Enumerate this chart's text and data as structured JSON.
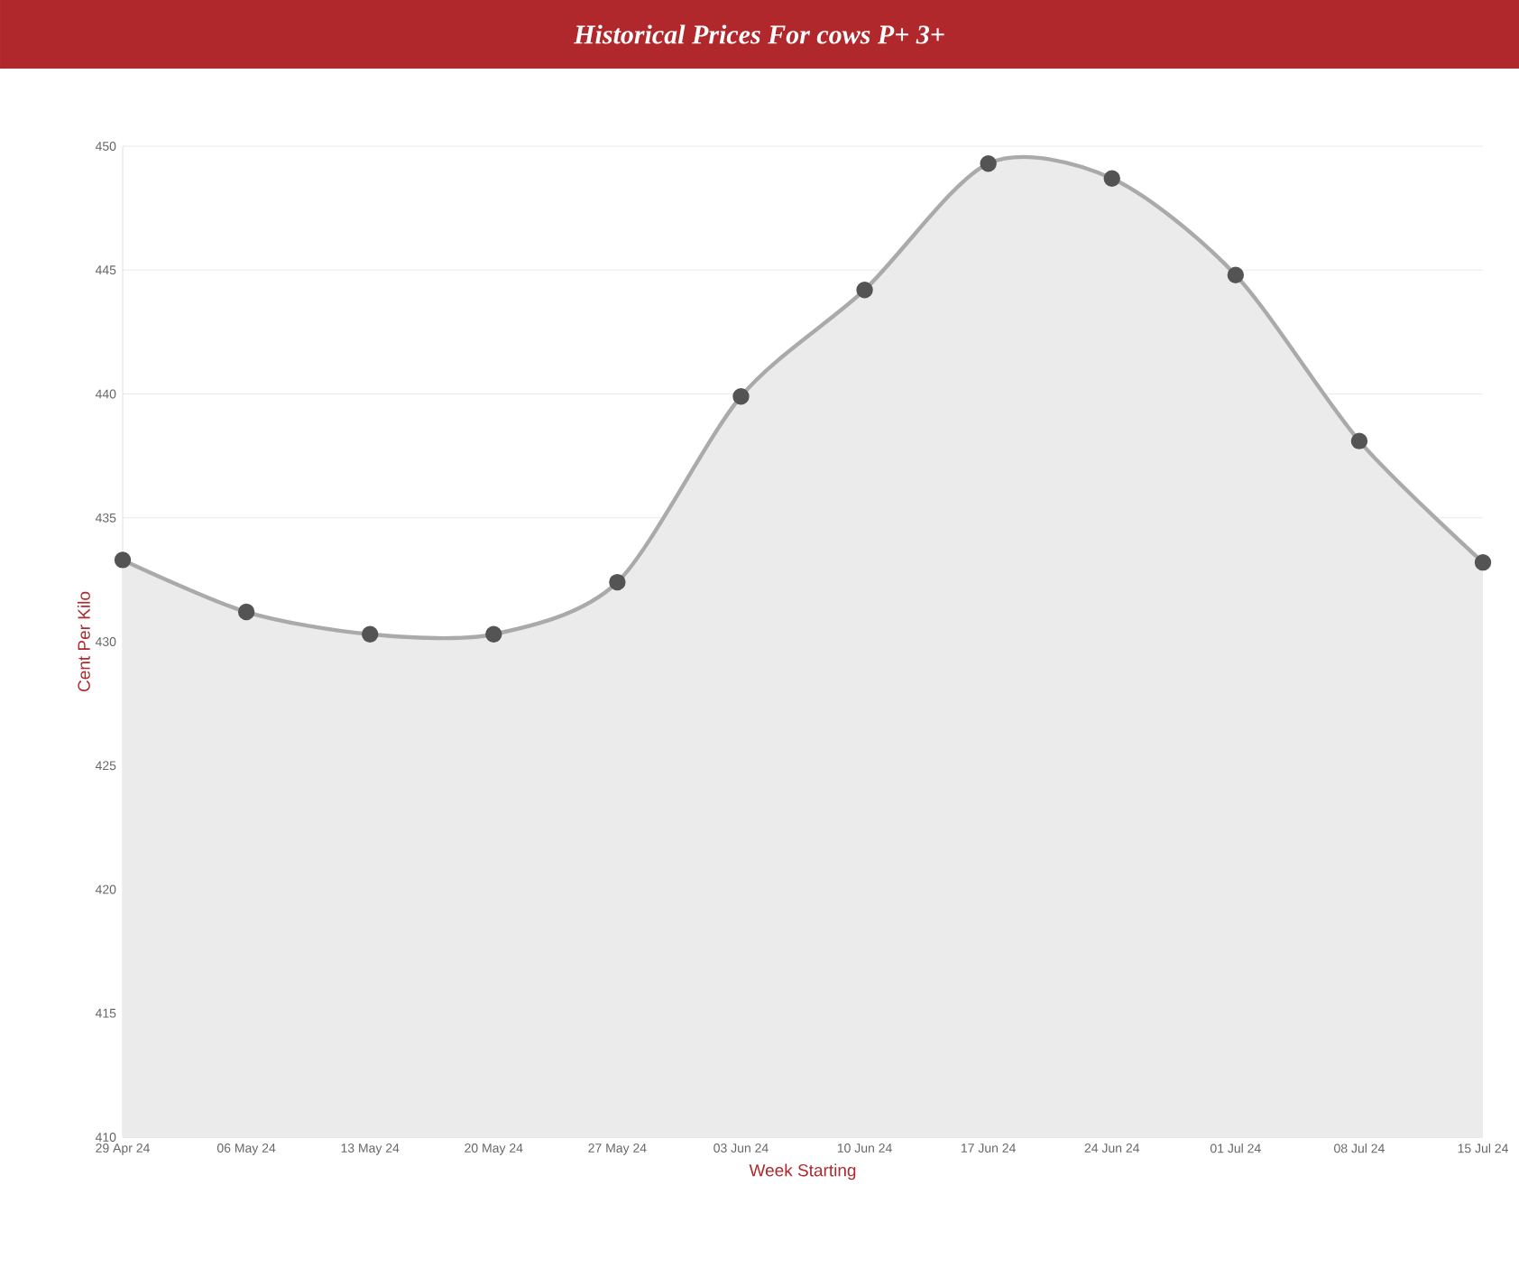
{
  "chart_data": {
    "type": "area",
    "title": "Historical Prices For cows P+ 3+",
    "xlabel": "Week Starting",
    "ylabel": "Cent Per Kilo",
    "categories": [
      "29 Apr 24",
      "06 May 24",
      "13 May 24",
      "20 May 24",
      "27 May 24",
      "03 Jun 24",
      "10 Jun 24",
      "17 Jun 24",
      "24 Jun 24",
      "01 Jul 24",
      "08 Jul 24",
      "15 Jul 24"
    ],
    "series": [
      {
        "color": "#aaaaaa",
        "values": [
          433.3,
          431.2,
          430.3,
          430.3,
          432.4,
          439.9,
          444.2,
          449.3,
          448.7,
          444.8,
          438.1,
          433.2
        ]
      }
    ],
    "ylim": [
      410,
      450
    ],
    "yticks": [
      410,
      415,
      420,
      425,
      430,
      435,
      440,
      445,
      450
    ],
    "grid": "y",
    "marker": "circle"
  }
}
